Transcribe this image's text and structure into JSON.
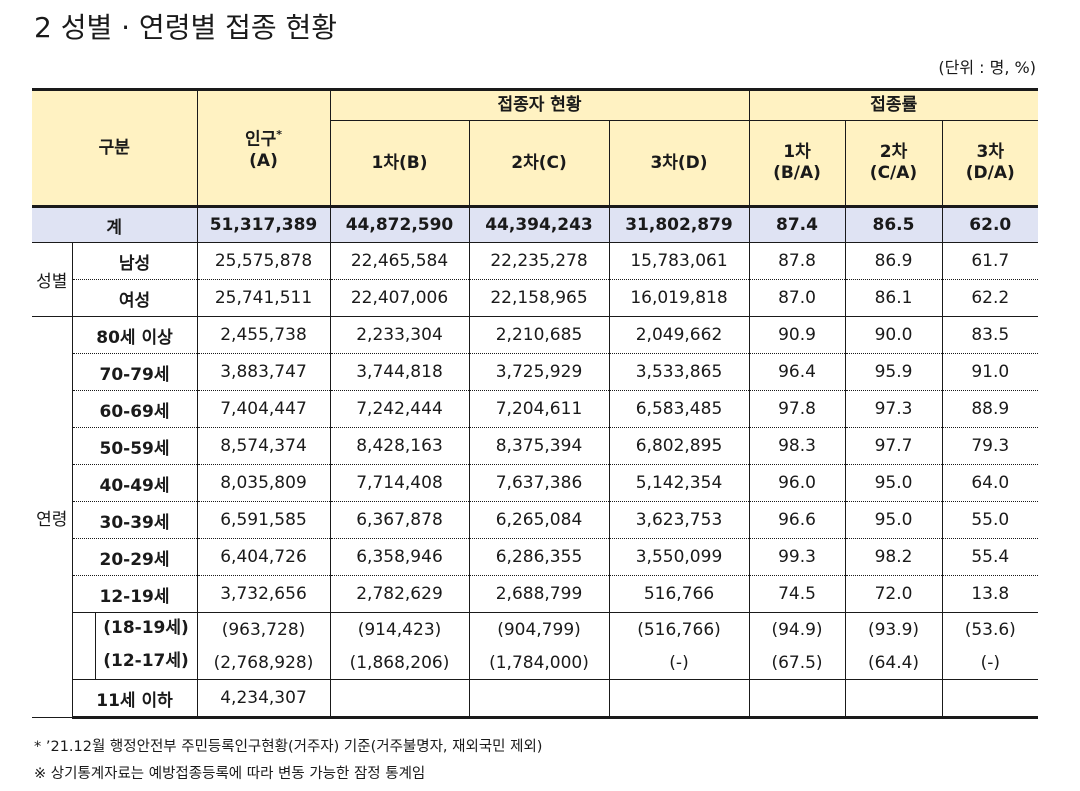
{
  "title": "2 성별 · 연령별 접종 현황",
  "unit": "(단위 : 명, %)",
  "header": {
    "category": "구분",
    "population": "인구",
    "population_mark": "*",
    "population_sub": "(A)",
    "vaccinated_group": "접종자 현황",
    "rate_group": "접종률",
    "dose1": "1차(B)",
    "dose2": "2차(C)",
    "dose3": "3차(D)",
    "rate1_a": "1차",
    "rate1_b": "(B/A)",
    "rate2_a": "2차",
    "rate2_b": "(C/A)",
    "rate3_a": "3차",
    "rate3_b": "(D/A)"
  },
  "total": {
    "label": "계",
    "values": [
      "51,317,389",
      "44,872,590",
      "44,394,243",
      "31,802,879",
      "87.4",
      "86.5",
      "62.0"
    ]
  },
  "sex": {
    "group": "성별",
    "rows": [
      {
        "label": "남성",
        "values": [
          "25,575,878",
          "22,465,584",
          "22,235,278",
          "15,783,061",
          "87.8",
          "86.9",
          "61.7"
        ]
      },
      {
        "label": "여성",
        "values": [
          "25,741,511",
          "22,407,006",
          "22,158,965",
          "16,019,818",
          "87.0",
          "86.1",
          "62.2"
        ]
      }
    ]
  },
  "age": {
    "group": "연령",
    "rows": [
      {
        "label": "80세 이상",
        "values": [
          "2,455,738",
          "2,233,304",
          "2,210,685",
          "2,049,662",
          "90.9",
          "90.0",
          "83.5"
        ]
      },
      {
        "label": "70-79세",
        "values": [
          "3,883,747",
          "3,744,818",
          "3,725,929",
          "3,533,865",
          "96.4",
          "95.9",
          "91.0"
        ]
      },
      {
        "label": "60-69세",
        "values": [
          "7,404,447",
          "7,242,444",
          "7,204,611",
          "6,583,485",
          "97.8",
          "97.3",
          "88.9"
        ]
      },
      {
        "label": "50-59세",
        "values": [
          "8,574,374",
          "8,428,163",
          "8,375,394",
          "6,802,895",
          "98.3",
          "97.7",
          "79.3"
        ]
      },
      {
        "label": "40-49세",
        "values": [
          "8,035,809",
          "7,714,408",
          "7,637,386",
          "5,142,354",
          "96.0",
          "95.0",
          "64.0"
        ]
      },
      {
        "label": "30-39세",
        "values": [
          "6,591,585",
          "6,367,878",
          "6,265,084",
          "3,623,753",
          "96.6",
          "95.0",
          "55.0"
        ]
      },
      {
        "label": "20-29세",
        "values": [
          "6,404,726",
          "6,358,946",
          "6,286,355",
          "3,550,099",
          "99.3",
          "98.2",
          "55.4"
        ]
      },
      {
        "label": "12-19세",
        "values": [
          "3,732,656",
          "2,782,629",
          "2,688,799",
          "516,766",
          "74.5",
          "72.0",
          "13.8"
        ]
      }
    ],
    "sub_rows": [
      {
        "label": "(18-19세)",
        "values": [
          "(963,728)",
          "(914,423)",
          "(904,799)",
          "(516,766)",
          "(94.9)",
          "(93.9)",
          "(53.6)"
        ]
      },
      {
        "label": "(12-17세)",
        "values": [
          "(2,768,928)",
          "(1,868,206)",
          "(1,784,000)",
          "(-)",
          "(67.5)",
          "(64.4)",
          "(-)"
        ]
      }
    ],
    "under11": {
      "label": "11세 이하",
      "population": "4,234,307"
    }
  },
  "notes": {
    "note1": "* ’21.12월 행정안전부 주민등록인구현황(거주자) 기준(거주불명자, 재외국민 제외)",
    "note2": "※ 상기통계자료는 예방접종등록에 따라 변동 가능한 잠정 통계임"
  }
}
